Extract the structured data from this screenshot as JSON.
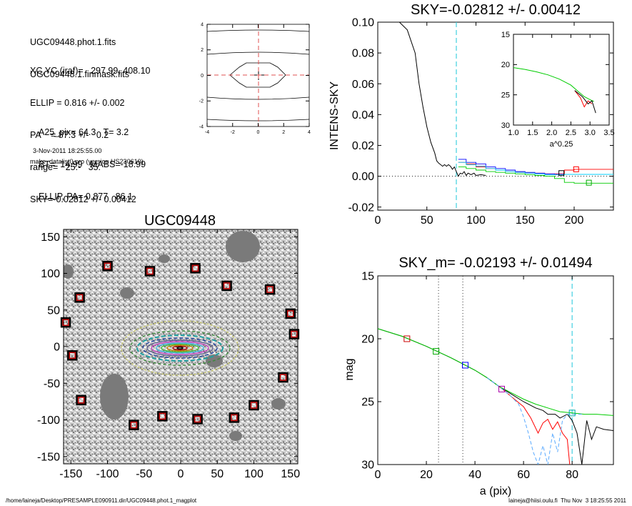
{
  "info": {
    "lines1": [
      "UGC09448.phot.1.fits",
      "UGC09448.1.finmask.fits"
    ],
    "lines2": [
      "XC,YC (iraf)=   297.99, 408.10",
      "ELLIP = 0.816 +/- 0.002",
      "PA    = 87.3 +/-   0.2",
      "range=   25.-   35.",
      "SKY=-0.02812 +/- 0.00412"
    ],
    "lines3": [
      "A25_pix= 64.3   T= 3.2",
      "BT=  14.99   MABS=-18.99",
      "ELLIP, PA= 0.877   86.1"
    ],
    "date": "3-Nov-2011 18:25:55.00",
    "program": "make_datalist0.pro (version HS230610)"
  },
  "footer": {
    "left": "/home/laineja/Desktop/PRESAMPLE090911.dir/UGC09448.phot.1_magplot",
    "right": "laineja@hiisi.oulu.fi  Thu Nov  3 18:25:55 2011"
  },
  "chart_data": [
    {
      "id": "contour_inset",
      "type": "line",
      "xlim": [
        -4,
        4
      ],
      "ylim": [
        -4,
        4
      ],
      "xticks": [
        "-4",
        "-2",
        "0",
        "2",
        "4"
      ],
      "yticks": [
        "4",
        "2",
        "0",
        "-2",
        "-4"
      ]
    },
    {
      "id": "sky",
      "type": "line",
      "title": "SKY=-0.02812 +/- 0.00412",
      "ylabel": "INTENS-SKY",
      "xlim": [
        0,
        240
      ],
      "ylim": [
        -0.022,
        0.1
      ],
      "xticks": [
        "0",
        "50",
        "100",
        "150",
        "200"
      ],
      "yticks": [
        "0.10",
        "0.08",
        "0.06",
        "0.04",
        "0.02",
        "0.00",
        "-0.02"
      ],
      "vline_x": 80,
      "series": [
        {
          "color": "#000000",
          "x": [
            22,
            30,
            38,
            42,
            46,
            50,
            54,
            58,
            60,
            62,
            64,
            66,
            68,
            70,
            72,
            74,
            76,
            78,
            80,
            82,
            84,
            86,
            88,
            90,
            92,
            95,
            98,
            100,
            105,
            110
          ],
          "y": [
            0.1,
            0.095,
            0.08,
            0.06,
            0.045,
            0.032,
            0.022,
            0.015,
            0.01,
            0.0085,
            0.0075,
            0.0065,
            0.0075,
            0.0065,
            0.0075,
            0.0065,
            0.0045,
            0.006,
            0.003,
            0.0,
            0.002,
            0.0015,
            0.003,
            0.0005,
            0.002,
            0.001,
            0.002,
            0.0005,
            0.001,
            0.0005
          ]
        },
        {
          "color": "#ff0000",
          "x": [
            82,
            90,
            100,
            110,
            120,
            130,
            140,
            150,
            160,
            170,
            180,
            190,
            200,
            210,
            220,
            240
          ],
          "y": [
            0.009,
            0.008,
            0.006,
            0.005,
            0.004,
            0.003,
            0.0025,
            0.002,
            0.002,
            0.0015,
            0.0015,
            0.004,
            0.0045,
            0.0045,
            0.0045,
            0.0045
          ]
        },
        {
          "color": "#0000ff",
          "x": [
            82,
            90,
            100,
            110,
            120,
            130,
            140,
            150,
            160,
            170,
            180,
            190,
            200,
            210,
            220,
            240
          ],
          "y": [
            0.011,
            0.009,
            0.008,
            0.006,
            0.005,
            0.004,
            0.003,
            0.0025,
            0.002,
            0.0015,
            0.0012,
            0.0012,
            0.0012,
            0.0012,
            0.0012,
            0.0012
          ]
        },
        {
          "color": "#00cc00",
          "x": [
            82,
            90,
            100,
            110,
            120,
            130,
            140,
            150,
            160,
            170,
            180,
            190,
            200,
            210,
            220,
            240
          ],
          "y": [
            0.006,
            0.005,
            0.004,
            0.003,
            0.0025,
            0.002,
            0.0015,
            0.001,
            0.0005,
            0.0,
            -0.0015,
            -0.004,
            -0.0045,
            -0.0045,
            -0.0045,
            -0.0045
          ]
        },
        {
          "color": "#00ccff",
          "x": [
            82,
            90,
            100,
            110,
            120,
            130,
            140,
            150,
            160,
            170,
            180,
            190,
            200,
            210,
            220,
            240
          ],
          "y": [
            0.009,
            0.0075,
            0.0065,
            0.005,
            0.004,
            0.003,
            0.0025,
            0.002,
            0.0015,
            0.001,
            0.001,
            0.0012,
            0.0012,
            0.0012,
            0.0012,
            0.0012
          ]
        }
      ],
      "markers": [
        {
          "x": 187,
          "y": 0.002,
          "color": "#000000"
        },
        {
          "x": 202,
          "y": 0.0045,
          "color": "#ff0000"
        },
        {
          "x": 215,
          "y": -0.0042,
          "color": "#00aa00"
        }
      ],
      "inset": {
        "xlabel": "a^0.25",
        "xlim": [
          1.0,
          3.5
        ],
        "ylim": [
          15,
          30
        ],
        "xticks": [
          "1.0",
          "1.5",
          "2.0",
          "2.5",
          "3.0",
          "3.5"
        ],
        "yticks": [
          "15",
          "20",
          "25",
          "30"
        ],
        "series": [
          {
            "color": "#00cc00",
            "x": [
              1.0,
              1.3,
              1.6,
              1.9,
              2.2,
              2.5,
              2.7,
              2.85,
              3.0,
              3.1
            ],
            "y": [
              20.5,
              20.8,
              21.2,
              21.7,
              22.4,
              23.4,
              24.5,
              25.3,
              25.8,
              26.1
            ]
          },
          {
            "color": "#ff0000",
            "x": [
              2.6,
              2.75,
              2.85,
              2.95,
              3.05
            ],
            "y": [
              24.3,
              25.5,
              27.0,
              26.0,
              26.5
            ]
          },
          {
            "color": "#000000",
            "x": [
              2.6,
              2.8,
              2.95,
              3.05,
              3.15
            ],
            "y": [
              24.3,
              25.3,
              26.5,
              26.0,
              28.0
            ]
          }
        ]
      }
    },
    {
      "id": "image",
      "type": "scatter",
      "title": "UGC09448",
      "xlim": [
        -160,
        160
      ],
      "ylim": [
        -160,
        160
      ],
      "xticks": [
        "-150",
        "-100",
        "-50",
        "0",
        "50",
        "100",
        "150"
      ],
      "yticks": [
        "150",
        "100",
        "50",
        "0",
        "-50",
        "-100",
        "-150"
      ],
      "squares": [
        {
          "x": -100,
          "y": 110
        },
        {
          "x": -42,
          "y": 103
        },
        {
          "x": 20,
          "y": 107
        },
        {
          "x": 63,
          "y": 83
        },
        {
          "x": 122,
          "y": 78
        },
        {
          "x": -138,
          "y": 67
        },
        {
          "x": 150,
          "y": 45
        },
        {
          "x": -157,
          "y": 33
        },
        {
          "x": 155,
          "y": 17
        },
        {
          "x": -148,
          "y": -12
        },
        {
          "x": 140,
          "y": -42
        },
        {
          "x": -136,
          "y": -73
        },
        {
          "x": 100,
          "y": -80
        },
        {
          "x": 73,
          "y": -97
        },
        {
          "x": -25,
          "y": -95
        },
        {
          "x": 23,
          "y": -99
        },
        {
          "x": -64,
          "y": -107
        }
      ]
    },
    {
      "id": "mag",
      "type": "line",
      "title": "SKY_m= -0.02193 +/- 0.01494",
      "xlabel": "a (pix)",
      "ylabel": "mag",
      "xlim": [
        0,
        97
      ],
      "ylim": [
        15,
        30
      ],
      "xticks": [
        "0",
        "20",
        "40",
        "60",
        "80"
      ],
      "yticks": [
        "15",
        "20",
        "25",
        "30"
      ],
      "vlines_dotted": [
        25,
        35
      ],
      "vline_dashed": 80,
      "series": [
        {
          "color": "#000000",
          "x": [
            0,
            10,
            20,
            30,
            35,
            40,
            45,
            50,
            55,
            60,
            65,
            68,
            70,
            73,
            75,
            78,
            80,
            82,
            84,
            86,
            88,
            90,
            93,
            97
          ],
          "y": [
            19.2,
            19.8,
            20.6,
            21.5,
            22.0,
            22.5,
            23.1,
            23.8,
            24.4,
            25.0,
            25.5,
            25.7,
            26.0,
            26.0,
            26.3,
            26.0,
            26.5,
            27.5,
            30,
            26.5,
            28,
            27,
            27.2,
            27.3
          ]
        },
        {
          "color": "#ff0000",
          "x": [
            50,
            55,
            60,
            63,
            66,
            68,
            70,
            72,
            74,
            76,
            78,
            79
          ],
          "y": [
            23.8,
            24.6,
            25.4,
            26.3,
            27.5,
            26.7,
            26.4,
            27.2,
            26.6,
            27.5,
            28,
            30
          ]
        },
        {
          "color": "#00cc00",
          "x": [
            0,
            10,
            20,
            30,
            35,
            40,
            45,
            50,
            55,
            60,
            65,
            70,
            75,
            80,
            85,
            90,
            97
          ],
          "y": [
            19.2,
            19.8,
            20.6,
            21.5,
            22.0,
            22.5,
            23.1,
            23.8,
            24.3,
            24.8,
            25.2,
            25.5,
            25.8,
            25.9,
            26.0,
            26.0,
            26.1
          ]
        },
        {
          "color": "#5aaaff",
          "x": [
            45,
            50,
            55,
            58,
            60,
            62,
            64,
            66,
            68,
            70,
            72,
            74,
            76,
            78,
            80,
            82,
            84
          ],
          "y": [
            23.1,
            23.8,
            24.6,
            25.2,
            26.2,
            27.5,
            29,
            30,
            28.5,
            30,
            27.5,
            29,
            26.5,
            26.0,
            26.0,
            26.0,
            26.0
          ]
        }
      ],
      "markers": [
        {
          "x": 12,
          "y": 20.0,
          "color": "#cc0000"
        },
        {
          "x": 24,
          "y": 21.0,
          "color": "#00aa00"
        },
        {
          "x": 36,
          "y": 22.1,
          "color": "#0000ff"
        },
        {
          "x": 51,
          "y": 24.0,
          "color": "#aa00aa"
        },
        {
          "x": 80,
          "y": 25.9,
          "color": "#00aaaa"
        }
      ]
    }
  ]
}
